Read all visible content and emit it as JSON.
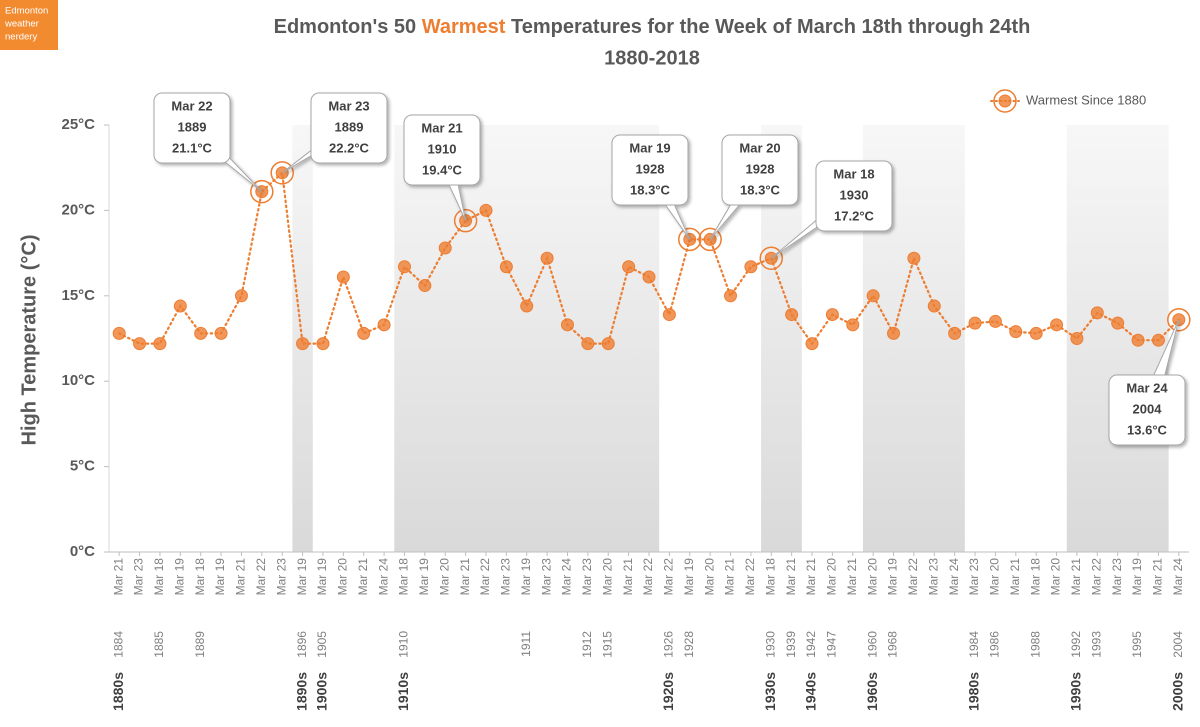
{
  "logo": [
    "Edmonton",
    "weather",
    "nerdery"
  ],
  "chart_data": {
    "type": "line",
    "title": [
      "Edmonton's 50 ",
      "Warmest",
      " Temperatures for the Week of  March 18th through 24th"
    ],
    "subtitle": "1880-2018",
    "y_label": "High Temperature (°C)",
    "categories": [
      "Mar 21",
      "Mar 23",
      "Mar 18",
      "Mar 19",
      "Mar 18",
      "Mar 19",
      "Mar 21",
      "Mar 22",
      "Mar 23",
      "Mar 19",
      "Mar 19",
      "Mar 20",
      "Mar 21",
      "Mar 24",
      "Mar 18",
      "Mar 19",
      "Mar 20",
      "Mar 21",
      "Mar 22",
      "Mar 23",
      "Mar 19",
      "Mar 23",
      "Mar 24",
      "Mar 23",
      "Mar 20",
      "Mar 21",
      "Mar 22",
      "Mar 22",
      "Mar 19",
      "Mar 20",
      "Mar 21",
      "Mar 22",
      "Mar 18",
      "Mar 21",
      "Mar 21",
      "Mar 20",
      "Mar 21",
      "Mar 20",
      "Mar 19",
      "Mar 22",
      "Mar 23",
      "Mar 24",
      "Mar 23",
      "Mar 20",
      "Mar 21",
      "Mar 18",
      "Mar 20",
      "Mar 21",
      "Mar 22",
      "Mar 23",
      "Mar 19",
      "Mar 21",
      "Mar 24"
    ],
    "years": [
      "1884",
      null,
      "1885",
      null,
      "1889",
      null,
      null,
      null,
      null,
      "1896",
      "1905",
      null,
      null,
      null,
      "1910",
      null,
      null,
      null,
      null,
      null,
      "1911",
      null,
      null,
      "1912",
      "1915",
      null,
      null,
      "1926",
      "1928",
      null,
      null,
      null,
      "1930",
      "1939",
      "1942",
      "1947",
      null,
      "1960",
      "1968",
      null,
      null,
      null,
      "1984",
      "1986",
      null,
      "1988",
      null,
      "1992",
      "1993",
      null,
      "1995",
      null,
      "2004"
    ],
    "decades": [
      "1880s",
      null,
      null,
      null,
      null,
      null,
      null,
      null,
      null,
      "1890s",
      "1900s",
      null,
      null,
      null,
      "1910s",
      null,
      null,
      null,
      null,
      null,
      null,
      null,
      null,
      null,
      null,
      null,
      null,
      "1920s",
      null,
      null,
      null,
      null,
      "1930s",
      null,
      "1940s",
      null,
      null,
      "1960s",
      null,
      null,
      null,
      null,
      "1980s",
      null,
      null,
      null,
      null,
      "1990s",
      null,
      null,
      null,
      null,
      "2000s"
    ],
    "series": [
      {
        "color": "#ed7d31",
        "values": [
          12.8,
          12.2,
          12.2,
          14.4,
          12.8,
          12.8,
          15.0,
          21.1,
          22.2,
          12.2,
          12.2,
          16.1,
          12.8,
          13.3,
          16.7,
          15.6,
          17.8,
          19.4,
          20.0,
          16.7,
          14.4,
          17.2,
          13.3,
          12.2,
          12.2,
          16.7,
          16.1,
          13.9,
          18.3,
          18.3,
          15.0,
          16.7,
          17.2,
          13.9,
          12.2,
          13.9,
          13.3,
          15.0,
          12.8,
          17.2,
          14.4,
          12.8,
          13.4,
          13.5,
          12.9,
          12.8,
          13.3,
          12.5,
          14.0,
          13.4,
          12.4,
          12.4,
          13.6
        ]
      },
      {
        "name": "Warmest Since 1880",
        "color": "#ed7d31",
        "values": [
          null,
          null,
          null,
          null,
          null,
          null,
          null,
          21.1,
          22.2,
          null,
          null,
          null,
          null,
          null,
          null,
          null,
          null,
          19.4,
          null,
          null,
          null,
          null,
          null,
          null,
          null,
          null,
          null,
          null,
          18.3,
          18.3,
          null,
          null,
          17.2,
          null,
          null,
          null,
          null,
          null,
          null,
          null,
          null,
          null,
          null,
          null,
          null,
          null,
          null,
          null,
          null,
          null,
          null,
          null,
          13.6
        ],
        "value_labels": [
          null,
          null,
          null,
          null,
          null,
          null,
          null,
          "21.1°C",
          "22.2°C",
          null,
          null,
          null,
          null,
          null,
          null,
          null,
          null,
          "19.4°C",
          null,
          null,
          null,
          null,
          null,
          null,
          null,
          null,
          null,
          null,
          "18.3°C",
          "18.3°C",
          null,
          null,
          "17.2°C",
          null,
          null,
          null,
          null,
          null,
          null,
          null,
          null,
          null,
          null,
          null,
          null,
          null,
          null,
          null,
          null,
          null,
          null,
          null,
          "13.6°C"
        ]
      }
    ],
    "annotations": [
      {
        "date": "Mar 22",
        "year": "1889"
      },
      {
        "date": "Mar 23",
        "year": "1889"
      },
      {
        "date": "Mar 21",
        "year": "1910"
      },
      {
        "date": "Mar 19",
        "year": "1928"
      },
      {
        "date": "Mar 20",
        "year": "1928"
      },
      {
        "date": "Mar 18",
        "year": "1930"
      },
      {
        "date": "Mar 24",
        "year": "2004"
      }
    ],
    "ylim": [
      0,
      25
    ],
    "yticks": [
      {
        "value": 0,
        "label": "0°C"
      },
      {
        "value": 5,
        "label": "5°C"
      },
      {
        "value": 10,
        "label": "10°C"
      },
      {
        "value": 15,
        "label": "15°C"
      },
      {
        "value": 20,
        "label": "20°C"
      },
      {
        "value": 25,
        "label": "25°C"
      }
    ],
    "legend": "top-right"
  }
}
